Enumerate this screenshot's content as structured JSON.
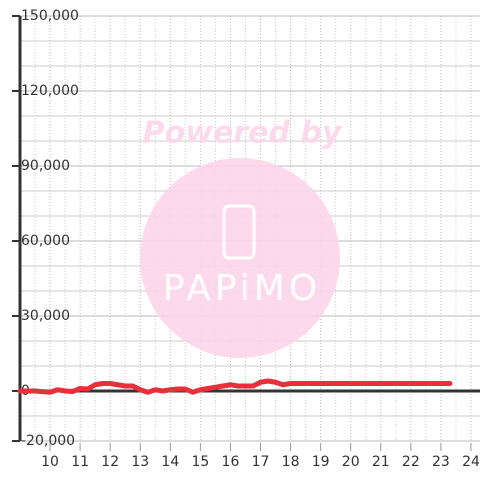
{
  "chart_data": {
    "type": "line",
    "watermark": {
      "text": "Powered by",
      "logo": "PAPiMO"
    },
    "xlim": [
      9,
      24.3
    ],
    "xticks": [
      10,
      11,
      12,
      13,
      14,
      15,
      16,
      17,
      18,
      19,
      20,
      21,
      22,
      23,
      24
    ],
    "x_minor_ticks": [
      9.5,
      10.5,
      11.5,
      12.5,
      13.5,
      14.5,
      15.5,
      16.5,
      17.5,
      18.5,
      19.5,
      20.5,
      21.5,
      22.5,
      23.5
    ],
    "ylim": [
      -20000,
      150000
    ],
    "yticks": [
      {
        "value": -20000,
        "label": "-20,000"
      },
      0,
      {
        "value": 30000,
        "label": "30,000"
      },
      {
        "value": 60000,
        "label": "60,000"
      },
      {
        "value": 90000,
        "label": "90,000"
      },
      {
        "value": 120000,
        "label": "120,000"
      },
      {
        "value": 150000,
        "label": "150,000"
      }
    ],
    "y_minor_ticks": [
      -10000,
      10000,
      20000,
      40000,
      50000,
      70000,
      80000,
      100000,
      110000,
      130000,
      140000
    ],
    "grid": true,
    "series": [
      {
        "color": "#e8303a",
        "x": [
          9,
          9.5,
          10,
          10.25,
          10.5,
          10.75,
          11,
          11.25,
          11.5,
          11.75,
          12,
          12.25,
          12.5,
          12.75,
          13,
          13.25,
          13.5,
          13.75,
          14,
          14.25,
          14.5,
          14.75,
          15,
          15.25,
          15.5,
          15.75,
          16,
          16.25,
          16.5,
          16.75,
          17,
          17.25,
          17.5,
          17.75,
          18,
          18.5,
          19,
          20,
          21,
          22,
          23,
          23.3
        ],
        "values": [
          0,
          0,
          -500,
          500,
          0,
          -200,
          1000,
          800,
          2500,
          3000,
          3000,
          2500,
          2000,
          2000,
          500,
          -500,
          500,
          0,
          500,
          800,
          800,
          -500,
          500,
          1000,
          1500,
          2000,
          2500,
          2000,
          2000,
          2000,
          3500,
          4000,
          3500,
          2500,
          3000,
          3000,
          3000,
          3000,
          3000,
          3000,
          3000,
          3000
        ]
      }
    ]
  }
}
